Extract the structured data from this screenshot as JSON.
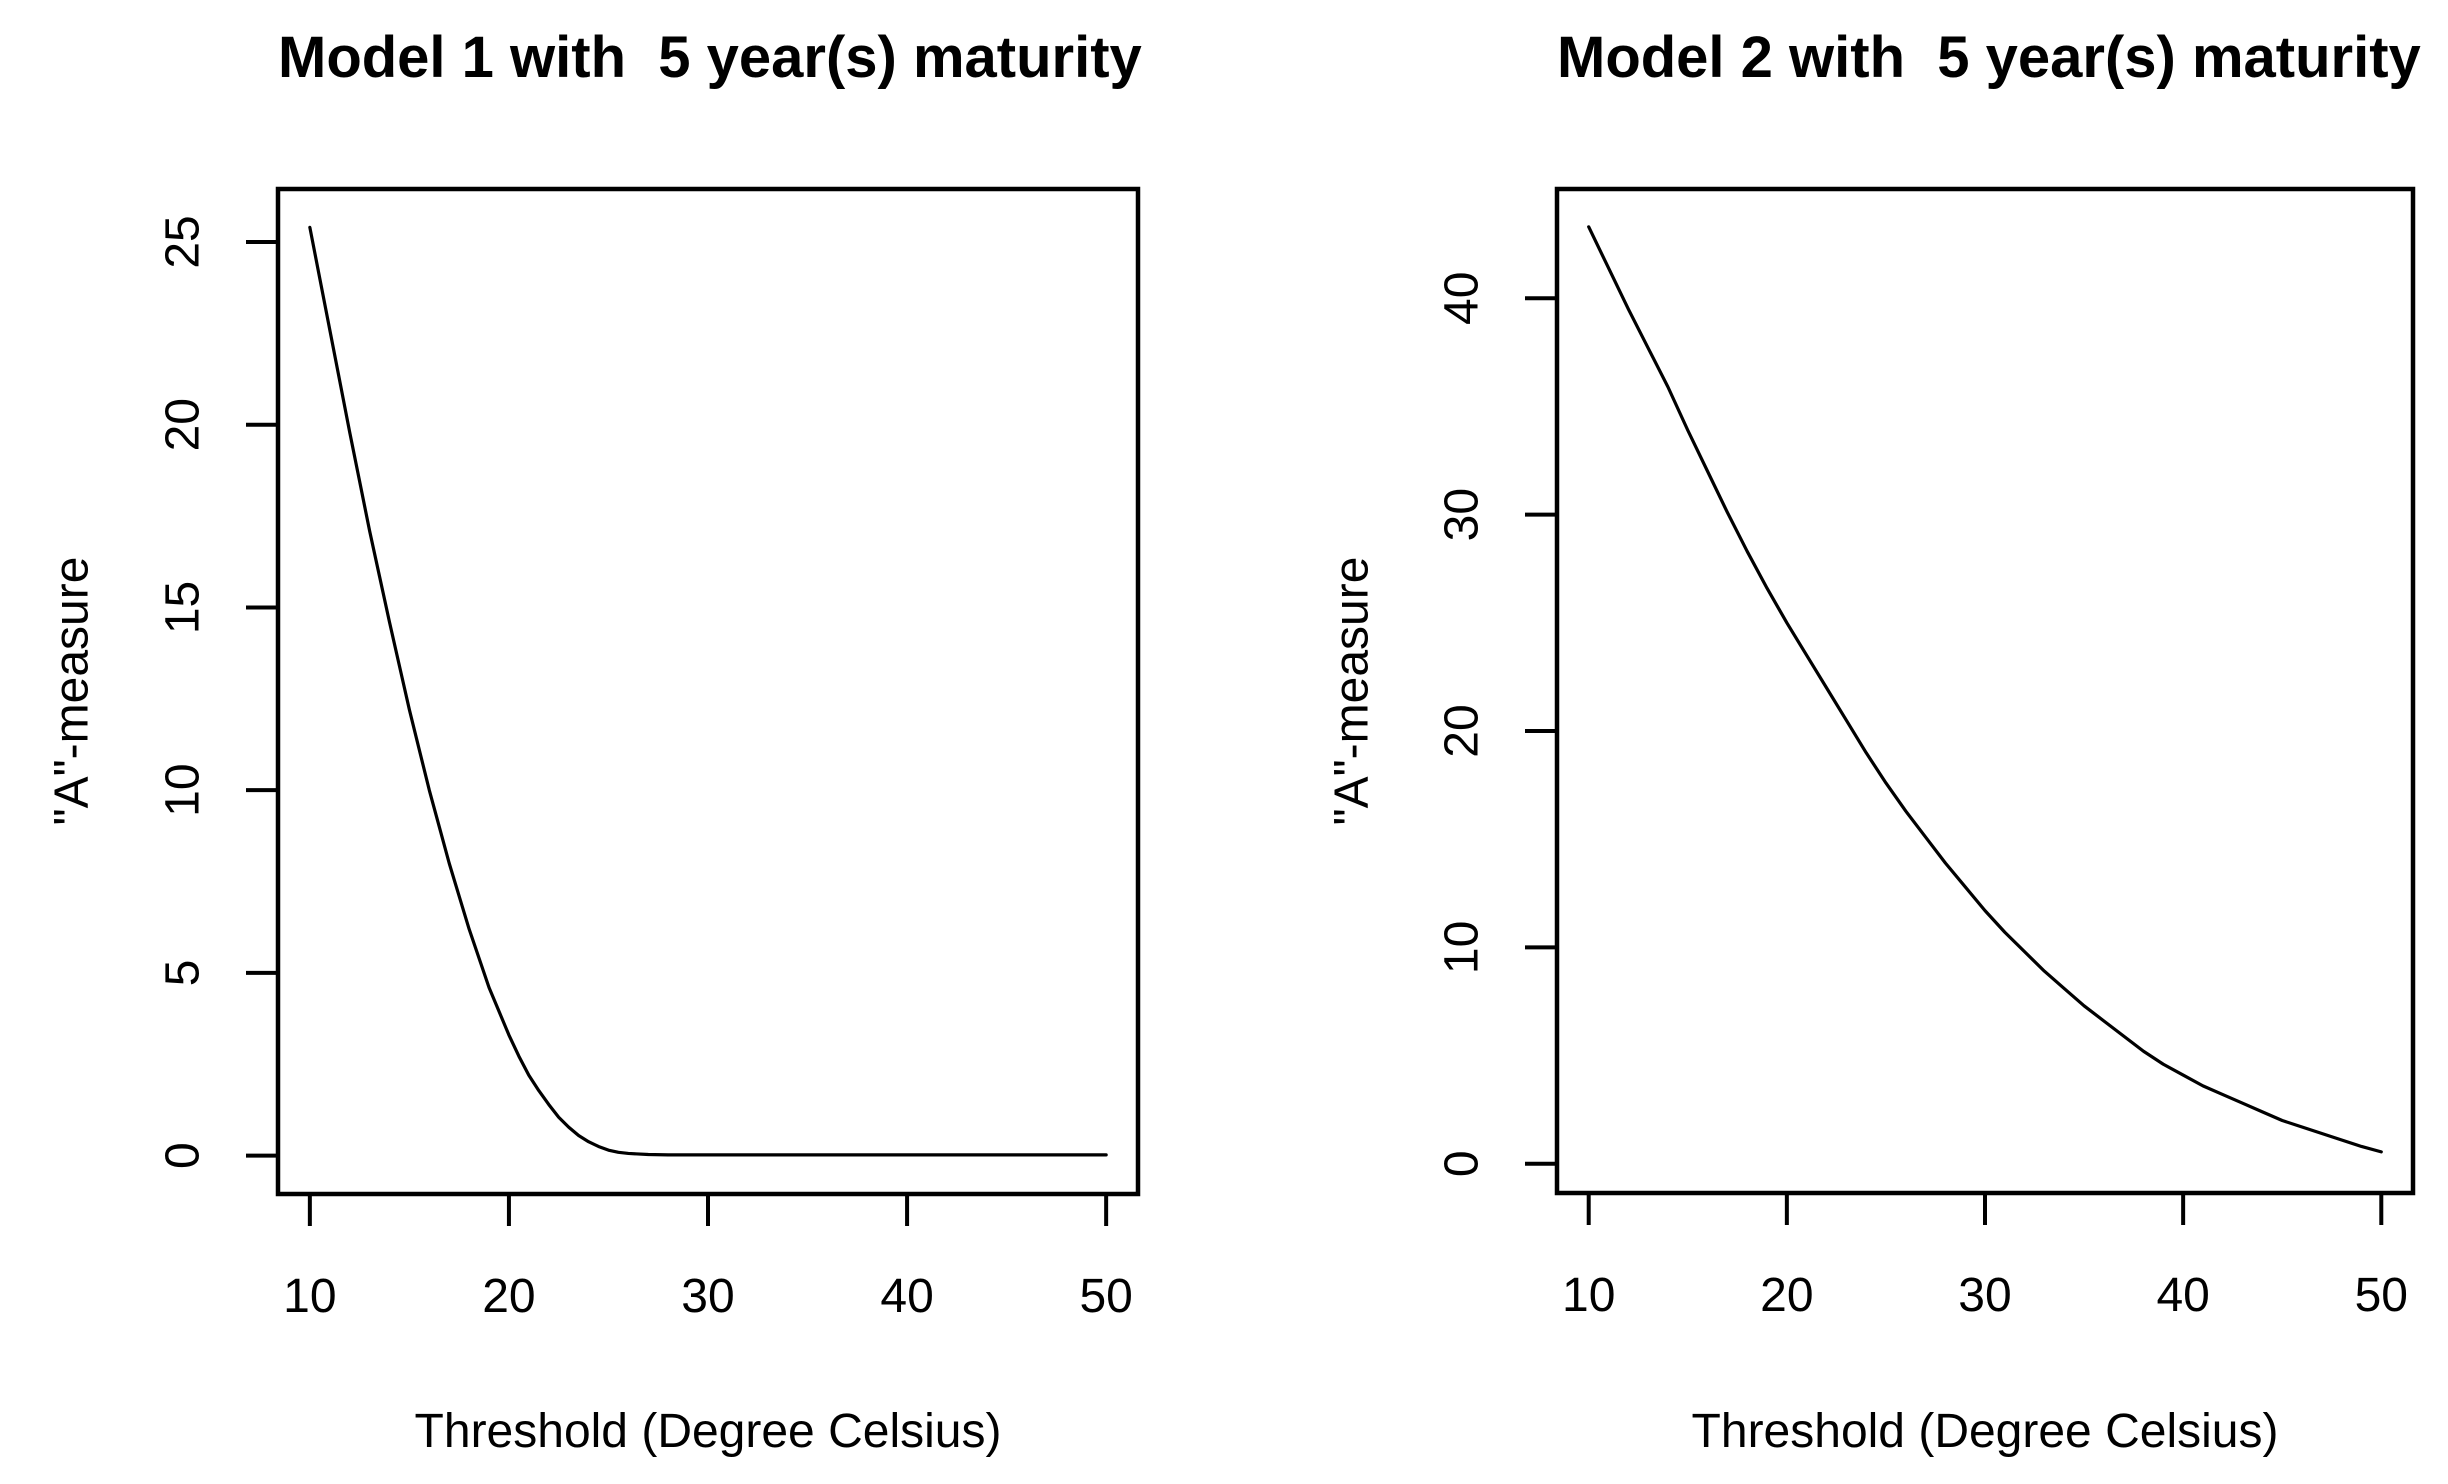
{
  "figure": {
    "background": "#ffffff",
    "axis_color": "#000000",
    "text_color": "#000000"
  },
  "chart_data": [
    {
      "type": "line",
      "title": "Model 1 with  5 year(s) maturity",
      "xlabel": "Threshold (Degree Celsius)",
      "ylabel": "\"A\"-measure",
      "x_ticks": [
        10,
        20,
        30,
        40,
        50
      ],
      "y_ticks": [
        0,
        5,
        10,
        15,
        20,
        25
      ],
      "x_range": [
        8.4,
        51.6
      ],
      "y_range": [
        -1.05,
        26.45
      ],
      "grid": false,
      "legend": false,
      "line_color": "#000000",
      "points": [
        [
          10,
          25.4
        ],
        [
          10.5,
          24.0
        ],
        [
          11,
          22.6
        ],
        [
          11.5,
          21.2
        ],
        [
          12,
          19.8
        ],
        [
          12.5,
          18.45
        ],
        [
          13,
          17.1
        ],
        [
          13.5,
          15.85
        ],
        [
          14,
          14.6
        ],
        [
          14.5,
          13.4
        ],
        [
          15,
          12.2
        ],
        [
          15.5,
          11.1
        ],
        [
          16,
          10.0
        ],
        [
          16.5,
          9.0
        ],
        [
          17,
          8.0
        ],
        [
          17.5,
          7.1
        ],
        [
          18,
          6.2
        ],
        [
          18.5,
          5.4
        ],
        [
          19,
          4.6
        ],
        [
          19.5,
          3.95
        ],
        [
          20,
          3.3
        ],
        [
          20.5,
          2.72
        ],
        [
          21,
          2.2
        ],
        [
          21.5,
          1.78
        ],
        [
          22,
          1.4
        ],
        [
          22.5,
          1.05
        ],
        [
          23,
          0.78
        ],
        [
          23.5,
          0.55
        ],
        [
          24,
          0.38
        ],
        [
          24.5,
          0.25
        ],
        [
          25,
          0.15
        ],
        [
          25.5,
          0.09
        ],
        [
          26,
          0.06
        ],
        [
          27,
          0.03
        ],
        [
          28,
          0.02
        ],
        [
          30,
          0.02
        ],
        [
          35,
          0.02
        ],
        [
          40,
          0.02
        ],
        [
          45,
          0.02
        ],
        [
          50,
          0.02
        ]
      ]
    },
    {
      "type": "line",
      "title": "Model 2 with  5 year(s) maturity",
      "xlabel": "Threshold (Degree Celsius)",
      "ylabel": "\"A\"-measure",
      "x_ticks": [
        10,
        20,
        30,
        40,
        50
      ],
      "y_ticks": [
        0,
        10,
        20,
        30,
        40
      ],
      "x_range": [
        8.4,
        51.6
      ],
      "y_range": [
        -1.35,
        45.05
      ],
      "grid": false,
      "legend": false,
      "line_color": "#000000",
      "points": [
        [
          10,
          43.3
        ],
        [
          11,
          41.4
        ],
        [
          12,
          39.5
        ],
        [
          13,
          37.7
        ],
        [
          14,
          35.9
        ],
        [
          15,
          33.9
        ],
        [
          16,
          32.0
        ],
        [
          17,
          30.1
        ],
        [
          18,
          28.3
        ],
        [
          19,
          26.6
        ],
        [
          20,
          25.0
        ],
        [
          21,
          23.5
        ],
        [
          22,
          22.0
        ],
        [
          23,
          20.5
        ],
        [
          24,
          19.0
        ],
        [
          25,
          17.6
        ],
        [
          26,
          16.3
        ],
        [
          27,
          15.1
        ],
        [
          28,
          13.9
        ],
        [
          29,
          12.8
        ],
        [
          30,
          11.7
        ],
        [
          31,
          10.7
        ],
        [
          32,
          9.8
        ],
        [
          33,
          8.9
        ],
        [
          34,
          8.1
        ],
        [
          35,
          7.3
        ],
        [
          36,
          6.6
        ],
        [
          37,
          5.9
        ],
        [
          38,
          5.2
        ],
        [
          39,
          4.6
        ],
        [
          40,
          4.1
        ],
        [
          41,
          3.6
        ],
        [
          42,
          3.2
        ],
        [
          43,
          2.8
        ],
        [
          44,
          2.4
        ],
        [
          45,
          2.0
        ],
        [
          46,
          1.7
        ],
        [
          47,
          1.4
        ],
        [
          48,
          1.1
        ],
        [
          49,
          0.8
        ],
        [
          50,
          0.55
        ]
      ]
    }
  ]
}
